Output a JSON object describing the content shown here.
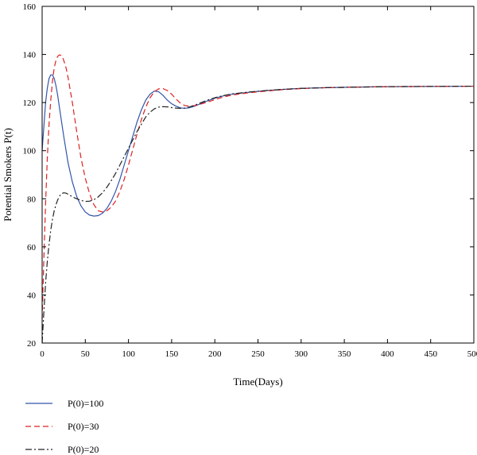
{
  "chart_data": {
    "type": "line",
    "title": "",
    "xlabel": "Time(Days)",
    "ylabel": "Potential Smokers P(t)",
    "xlim": [
      0,
      500
    ],
    "ylim": [
      20,
      160
    ],
    "xticks": [
      0,
      50,
      100,
      150,
      200,
      250,
      300,
      350,
      400,
      450,
      500
    ],
    "yticks": [
      20,
      40,
      60,
      80,
      100,
      120,
      140,
      160
    ],
    "grid": false,
    "legend_position": "bottom-left, below plot",
    "series": [
      {
        "name": "P(0)=100",
        "color": "#3355aa",
        "dash": "solid",
        "x": [
          0,
          2,
          4,
          6,
          8,
          10,
          12,
          14,
          16,
          18,
          20,
          25,
          30,
          35,
          40,
          45,
          50,
          55,
          60,
          65,
          70,
          75,
          80,
          85,
          90,
          95,
          100,
          105,
          110,
          115,
          120,
          125,
          130,
          135,
          140,
          145,
          150,
          155,
          160,
          165,
          170,
          175,
          180,
          190,
          200,
          210,
          220,
          240,
          260,
          280,
          300,
          330,
          360,
          400,
          450,
          500
        ],
        "y": [
          100,
          110,
          120,
          126,
          130,
          131.5,
          131.5,
          130,
          127,
          123,
          118,
          106,
          95,
          87,
          81,
          77,
          74.5,
          73.2,
          72.8,
          73,
          74,
          76,
          79,
          83,
          88,
          94,
          100,
          106,
          112,
          117,
          121,
          123.5,
          124.8,
          124.5,
          123,
          121,
          119.5,
          118.5,
          117.8,
          117.6,
          117.8,
          118.3,
          119,
          120.5,
          121.8,
          122.8,
          123.5,
          124.3,
          125,
          125.5,
          125.9,
          126.2,
          126.4,
          126.6,
          126.7,
          126.8
        ]
      },
      {
        "name": "P(0)=30",
        "color": "#dd2222",
        "dash": "dashed",
        "x": [
          0,
          2,
          4,
          6,
          8,
          10,
          12,
          14,
          16,
          18,
          20,
          22,
          24,
          26,
          28,
          30,
          35,
          40,
          45,
          50,
          55,
          60,
          65,
          70,
          75,
          80,
          85,
          90,
          95,
          100,
          105,
          110,
          115,
          120,
          125,
          130,
          135,
          140,
          145,
          150,
          155,
          160,
          165,
          170,
          175,
          180,
          190,
          200,
          210,
          220,
          240,
          260,
          280,
          300,
          330,
          360,
          400,
          450,
          500
        ],
        "y": [
          30,
          55,
          78,
          97,
          111,
          121,
          129,
          134.5,
          137.5,
          139.2,
          139.8,
          139.6,
          138.5,
          136.5,
          134,
          130.5,
          120,
          108,
          97,
          88.5,
          82,
          77.5,
          75,
          74.5,
          75,
          76.5,
          79,
          83,
          88,
          94,
          100.5,
          107,
          113,
          118,
          122,
          124.5,
          125.7,
          125.8,
          125,
          123.5,
          121.5,
          119.8,
          118.8,
          118.5,
          118.6,
          119,
          120,
          121.2,
          122.3,
          123.1,
          124.1,
          124.8,
          125.4,
          125.8,
          126.2,
          126.4,
          126.6,
          126.7,
          126.8
        ]
      },
      {
        "name": "P(0)=20",
        "color": "#222222",
        "dash": "dashdot",
        "x": [
          0,
          2,
          4,
          6,
          8,
          10,
          12,
          14,
          16,
          18,
          20,
          22,
          25,
          28,
          31,
          35,
          40,
          45,
          50,
          55,
          60,
          65,
          70,
          75,
          80,
          85,
          90,
          95,
          100,
          105,
          110,
          115,
          120,
          125,
          130,
          135,
          140,
          145,
          150,
          155,
          160,
          165,
          170,
          175,
          180,
          190,
          200,
          210,
          220,
          240,
          260,
          280,
          300,
          330,
          360,
          400,
          450,
          500
        ],
        "y": [
          20,
          33,
          45,
          54,
          61,
          67,
          71.5,
          75,
          77.5,
          79.5,
          81,
          82,
          82.5,
          82.3,
          81.7,
          80.8,
          80,
          79.3,
          78.9,
          79,
          79.6,
          80.8,
          82.5,
          84.8,
          87.5,
          90.5,
          94,
          97.5,
          101,
          104.5,
          108,
          111,
          114,
          116,
          117.4,
          118.1,
          118.3,
          118.2,
          117.9,
          117.7,
          117.6,
          117.7,
          118.1,
          118.7,
          119.4,
          120.8,
          122,
          122.9,
          123.6,
          124.4,
          125,
          125.5,
          125.9,
          126.2,
          126.4,
          126.6,
          126.7,
          126.8
        ]
      }
    ]
  }
}
